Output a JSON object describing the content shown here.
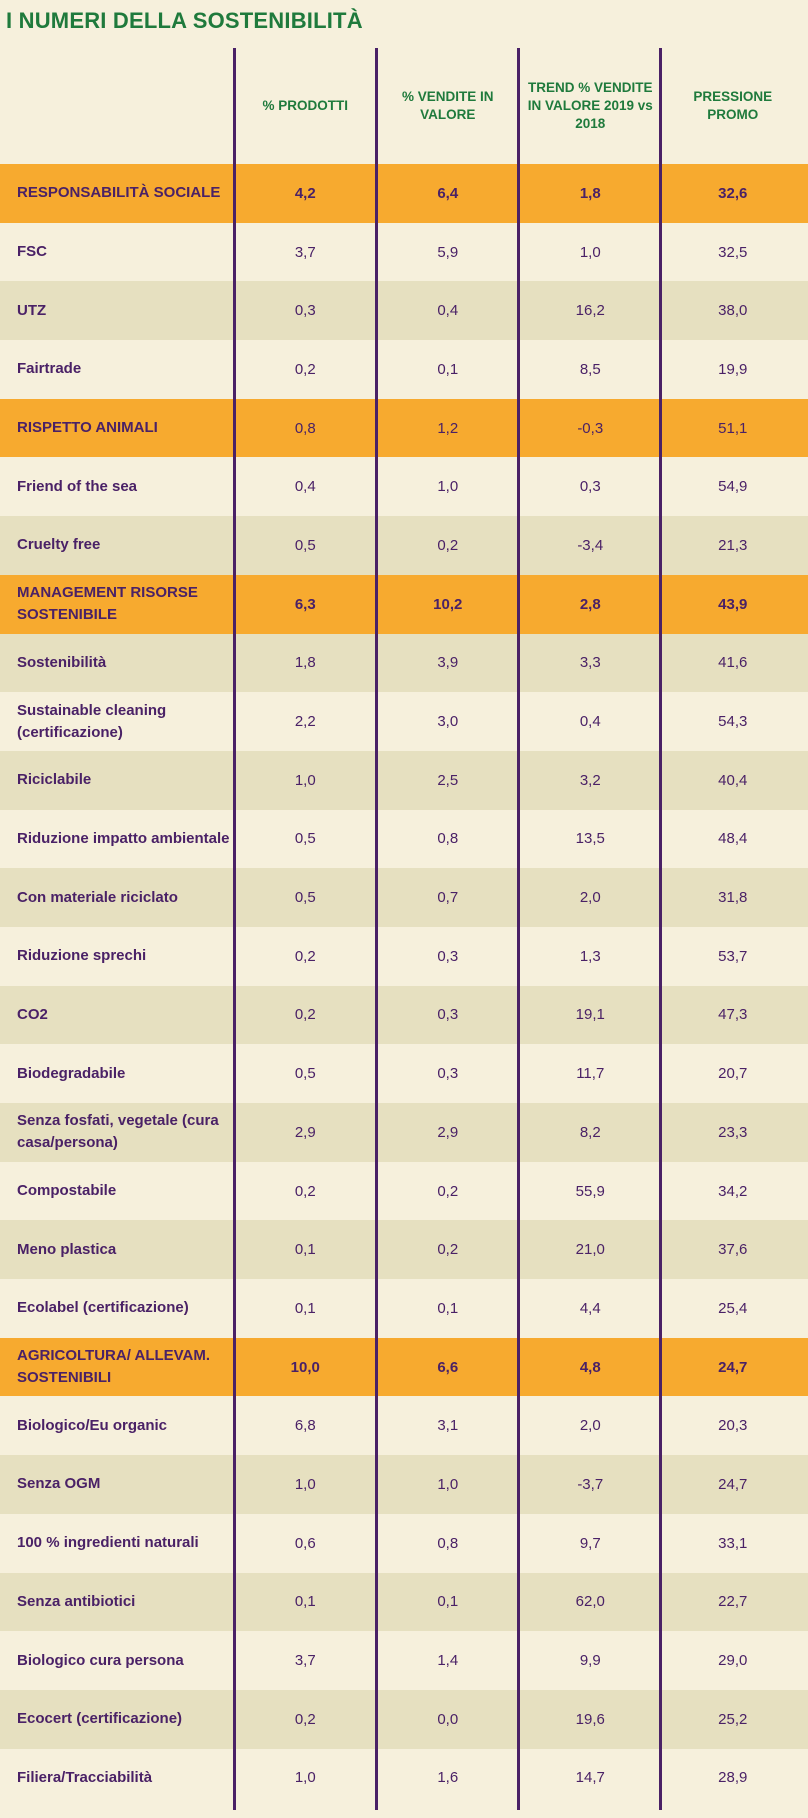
{
  "title": "I NUMERI DELLA SOSTENIBILITÀ",
  "headers": [
    "% PRODOTTI",
    "% VENDITE IN VALORE",
    "TREND % VENDITE IN VALORE 2019 vs 2018",
    "PRESSIONE PROMO"
  ],
  "rows": [
    {
      "label": "RESPONSABILITÀ SOCIALE",
      "type": "cat",
      "bold": true,
      "v": [
        "4,2",
        "6,4",
        "1,8",
        "32,6"
      ]
    },
    {
      "label": "FSC",
      "type": "odd",
      "v": [
        "3,7",
        "5,9",
        "1,0",
        "32,5"
      ]
    },
    {
      "label": "UTZ",
      "type": "even",
      "v": [
        "0,3",
        "0,4",
        "16,2",
        "38,0"
      ]
    },
    {
      "label": "Fairtrade",
      "type": "odd",
      "v": [
        "0,2",
        "0,1",
        "8,5",
        "19,9"
      ]
    },
    {
      "label": "RISPETTO ANIMALI",
      "type": "cat",
      "bold": false,
      "v": [
        "0,8",
        "1,2",
        "-0,3",
        "51,1"
      ]
    },
    {
      "label": "Friend of the sea",
      "type": "odd",
      "v": [
        "0,4",
        "1,0",
        "0,3",
        "54,9"
      ]
    },
    {
      "label": "Cruelty free",
      "type": "even",
      "v": [
        "0,5",
        "0,2",
        "-3,4",
        "21,3"
      ]
    },
    {
      "label": "MANAGEMENT RISORSE SOSTENIBILE",
      "type": "cat",
      "bold": true,
      "v": [
        "6,3",
        "10,2",
        "2,8",
        "43,9"
      ]
    },
    {
      "label": "Sostenibilità",
      "type": "even",
      "v": [
        "1,8",
        "3,9",
        "3,3",
        "41,6"
      ]
    },
    {
      "label": "Sustainable cleaning (certificazione)",
      "type": "odd",
      "v": [
        "2,2",
        "3,0",
        "0,4",
        "54,3"
      ]
    },
    {
      "label": "Riciclabile",
      "type": "even",
      "v": [
        "1,0",
        "2,5",
        "3,2",
        "40,4"
      ]
    },
    {
      "label": "Riduzione impatto ambientale",
      "type": "odd",
      "v": [
        "0,5",
        "0,8",
        "13,5",
        "48,4"
      ]
    },
    {
      "label": "Con materiale riciclato",
      "type": "even",
      "v": [
        "0,5",
        "0,7",
        "2,0",
        "31,8"
      ]
    },
    {
      "label": "Riduzione sprechi",
      "type": "odd",
      "v": [
        "0,2",
        "0,3",
        "1,3",
        "53,7"
      ]
    },
    {
      "label": "CO2",
      "type": "even",
      "v": [
        "0,2",
        "0,3",
        "19,1",
        "47,3"
      ]
    },
    {
      "label": "Biodegradabile",
      "type": "odd",
      "v": [
        "0,5",
        "0,3",
        "11,7",
        "20,7"
      ]
    },
    {
      "label": "Senza fosfati, vegetale (cura casa/persona)",
      "type": "even",
      "v": [
        "2,9",
        "2,9",
        "8,2",
        "23,3"
      ]
    },
    {
      "label": "Compostabile",
      "type": "odd",
      "v": [
        "0,2",
        "0,2",
        "55,9",
        "34,2"
      ]
    },
    {
      "label": "Meno plastica",
      "type": "even",
      "v": [
        "0,1",
        "0,2",
        "21,0",
        "37,6"
      ]
    },
    {
      "label": "Ecolabel (certificazione)",
      "type": "odd",
      "v": [
        "0,1",
        "0,1",
        "4,4",
        "25,4"
      ]
    },
    {
      "label": "AGRICOLTURA/ ALLEVAM. SOSTENIBILI",
      "type": "cat",
      "bold": true,
      "v": [
        "10,0",
        "6,6",
        "4,8",
        "24,7"
      ]
    },
    {
      "label": "Biologico/Eu organic",
      "type": "odd",
      "v": [
        "6,8",
        "3,1",
        "2,0",
        "20,3"
      ]
    },
    {
      "label": "Senza OGM",
      "type": "even",
      "v": [
        "1,0",
        "1,0",
        "-3,7",
        "24,7"
      ]
    },
    {
      "label": "100 % ingredienti naturali",
      "type": "odd",
      "v": [
        "0,6",
        "0,8",
        "9,7",
        "33,1"
      ]
    },
    {
      "label": "Senza antibiotici",
      "type": "even",
      "v": [
        "0,1",
        "0,1",
        "62,0",
        "22,7"
      ]
    },
    {
      "label": "Biologico cura persona",
      "type": "odd",
      "v": [
        "3,7",
        "1,4",
        "9,9",
        "29,0"
      ]
    },
    {
      "label": "Ecocert (certificazione)",
      "type": "even",
      "v": [
        "0,2",
        "0,0",
        "19,6",
        "25,2"
      ]
    },
    {
      "label": "Filiera/Tracciabilità",
      "type": "odd",
      "v": [
        "1,0",
        "1,6",
        "14,7",
        "28,9"
      ]
    }
  ]
}
